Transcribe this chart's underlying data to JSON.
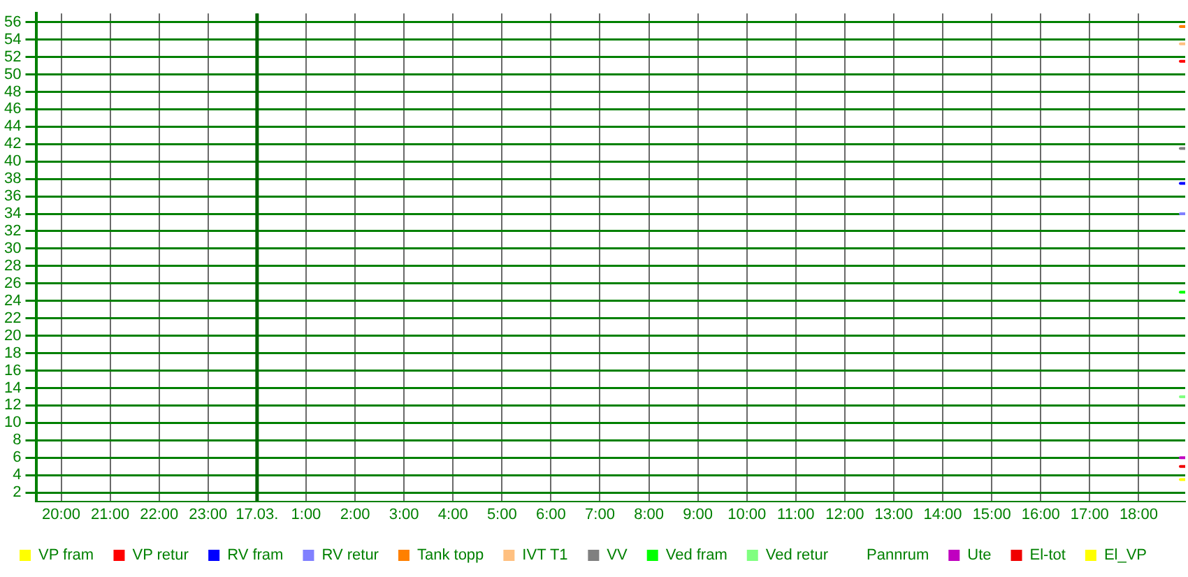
{
  "chart_data": {
    "type": "line",
    "x": [
      "--03-17T18:51",
      "--03-17T18:57"
    ],
    "xlim": [
      "--03-16T19:30",
      "--03-17T18:57"
    ],
    "xticks": [
      {
        "value": "--03-16T20:00",
        "label": "20:00"
      },
      {
        "value": "--03-16T21:00",
        "label": "21:00"
      },
      {
        "value": "--03-16T22:00",
        "label": "22:00"
      },
      {
        "value": "--03-16T23:00",
        "label": "23:00"
      },
      {
        "value": "--03-17T00:00",
        "label": "17.03."
      },
      {
        "value": "--03-17T01:00",
        "label": "1:00"
      },
      {
        "value": "--03-17T02:00",
        "label": "2:00"
      },
      {
        "value": "--03-17T03:00",
        "label": "3:00"
      },
      {
        "value": "--03-17T04:00",
        "label": "4:00"
      },
      {
        "value": "--03-17T05:00",
        "label": "5:00"
      },
      {
        "value": "--03-17T06:00",
        "label": "6:00"
      },
      {
        "value": "--03-17T07:00",
        "label": "7:00"
      },
      {
        "value": "--03-17T08:00",
        "label": "8:00"
      },
      {
        "value": "--03-17T09:00",
        "label": "9:00"
      },
      {
        "value": "--03-17T10:00",
        "label": "10:00"
      },
      {
        "value": "--03-17T11:00",
        "label": "11:00"
      },
      {
        "value": "--03-17T12:00",
        "label": "12:00"
      },
      {
        "value": "--03-17T13:00",
        "label": "13:00"
      },
      {
        "value": "--03-17T14:00",
        "label": "14:00"
      },
      {
        "value": "--03-17T15:00",
        "label": "15:00"
      },
      {
        "value": "--03-17T16:00",
        "label": "16:00"
      },
      {
        "value": "--03-17T17:00",
        "label": "17:00"
      },
      {
        "value": "--03-17T18:00",
        "label": "18:00"
      }
    ],
    "ylim": [
      1,
      57
    ],
    "yticks": [
      2,
      4,
      6,
      8,
      10,
      12,
      14,
      16,
      18,
      20,
      22,
      24,
      26,
      28,
      30,
      32,
      34,
      36,
      38,
      40,
      42,
      44,
      46,
      48,
      50,
      52,
      54,
      56
    ],
    "grid": true,
    "legend": "bottom",
    "marker": "none",
    "ref_lines": [
      {
        "axis": "x",
        "value": "--03-17T00:00",
        "color": "#006400"
      }
    ],
    "series": [
      {
        "name": "VP fram",
        "color": "#ffff00",
        "values": [
          null,
          null
        ]
      },
      {
        "name": "VP retur",
        "color": "#ff0000",
        "values": [
          51.5,
          51.5
        ]
      },
      {
        "name": "RV fram",
        "color": "#0000ff",
        "values": [
          37.5,
          37.5
        ]
      },
      {
        "name": "RV retur",
        "color": "#8080ff",
        "values": [
          34,
          34
        ]
      },
      {
        "name": "Tank topp",
        "color": "#ff8000",
        "values": [
          55.5,
          55.5
        ]
      },
      {
        "name": "IVT T1",
        "color": "#ffc080",
        "values": [
          53.5,
          53.5
        ]
      },
      {
        "name": "VV",
        "color": "#808080",
        "values": [
          41.5,
          41.5
        ]
      },
      {
        "name": "Ved fram",
        "color": "#00ff00",
        "values": [
          25,
          25
        ]
      },
      {
        "name": "Ved retur",
        "color": "#80ff80",
        "values": [
          13,
          13
        ]
      },
      {
        "name": "Pannrum",
        "values": [
          null,
          null
        ]
      },
      {
        "name": "Ute",
        "color": "#c000c0",
        "values": [
          6,
          6
        ]
      },
      {
        "name": "El-tot",
        "color": "#f00000",
        "values": [
          5,
          5
        ]
      },
      {
        "name": "El_VP",
        "color": "#ffff00",
        "values": [
          3.5,
          3.5
        ]
      }
    ]
  }
}
